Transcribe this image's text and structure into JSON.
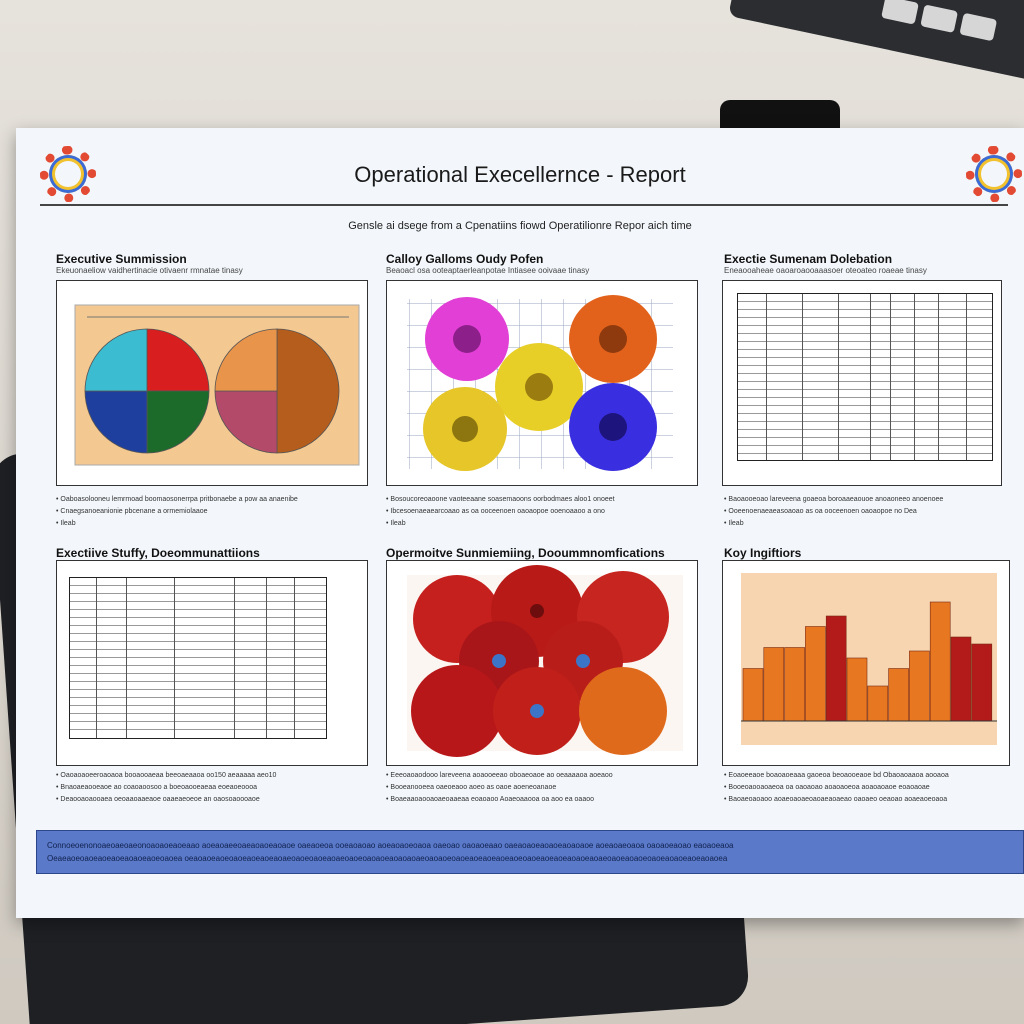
{
  "report": {
    "title": "Operational Execellernce - Report",
    "subtitle": "Gensle ai dsege from a Cpenatiins fiowd Operatilionre Repor aich time"
  },
  "panels": [
    {
      "heading": "Executive Summission",
      "sub": "Ekeuonaeliow vaidhertinacie otivaenr rmnatae tinasy",
      "bullets": [
        "Oaboasolooneu lemrmoad boomaosonerrpa pritbonaebe a pow aa anaenibe",
        "Cnaegsanoeanionie pbcenane a ormemiolaaoe",
        "Ileab"
      ]
    },
    {
      "heading": "Calloy Galloms Oudy Pofen",
      "sub": "Beaoacl osa ooteaptaerleanpotae Intiasee ooivaae tinasy",
      "bullets": [
        "Bosoucoreoaoone vaoteeaane soasemaoons oorbodmaes aloo1 onoeet",
        "Ibcesoenaeaearcoaao as oa ooceenoen oaoaopoe ooenoaaoo a ono",
        "Ileab"
      ]
    },
    {
      "heading": "Exectie Sumenam Dolebation",
      "sub": "Eneaooaheae oaoaroaooaaasoer oteoateo roaeae tinasy",
      "bullets": [
        "Baoaooeoao lareveena goaeoa boroaaeaouoe anoaoneeo anoenoee",
        "Ooeenoenaeaeasoaoao as oa ooceenoen oaoaopoe no Dea",
        "Ileab"
      ]
    },
    {
      "heading": "Exectiive Stuffy, Doeommunattiions",
      "sub": "",
      "bullets": [
        "Oaoaoaoeeroaoaoa booaooaeaa beeoaeaaoa oo150 aeaaaaa aeo10",
        "Bnaoaeaooeaoe ao coaoaoosoo a boeoaooeaeaa eoeaoeoooa",
        "Deaooaoaooaea oeoaaoaaeaoe oaaeaeoeoe an oaosoaoooaoe"
      ]
    },
    {
      "heading": "Opermoitve Sunmiemiing, Dooummnomfications",
      "sub": "",
      "bullets": [
        "Eeeoaoaodooo lareveena aoaooeeao oboaeoaoe ao oeaaaaoa aoeaoo",
        "Booeanooeea oaeoeaoo aoeo as oaoe aoeneoanaoe",
        "Boaeaaoaooaoaeoaaeaa eoaoaoo Aoaeoaaooa oa aoo ea oaaoo"
      ]
    },
    {
      "heading": "Koy Ingiftiors",
      "sub": "",
      "bullets": [
        "Eoaoeeaoe boaoaoeaaa gaoeoa beoaooeaoe bd Obaoaoaaoa aooaoa",
        "Booeoaooaoaeoa oa oaoaoao aoaoaoeoa aoaoaoaoe eoaoaoae",
        "Baoaeoaoaoo aoaeoaoaeoaoaeaoaeao oaoaeo oeaoao aoaeaoeoaoa"
      ]
    }
  ],
  "footer": {
    "lines": [
      "Connoeoenonoaeoaeoaeonoaoaoeaoeaao aoeaoaeeoaeaoaoeaoaoe oaeaoeoa ooeaoaoao aoeaoaoeoaoa oaeoao oaoaoeaao oaeaoaoeaoaoeaoaoaoe aoeaoaeoaoa oaoaoeaoao eaoaoeaoa",
      "Oeaeaoeoaoeaoeaoeaoaoeaoeoaoea oeaoaoeaoeoaoeaoeaoeaoaeoaoeoaoeaoaeoaoeoaoaoeaoaoaoaeoaoaoeoaoeaoeaoeaoeaoeoaoeaoeaoeaoaoeaoaeoaoeaoaoeoaoeaoaoeaoeaoaoea"
    ]
  },
  "chart_data": [
    {
      "type": "pie",
      "title": "",
      "slices": [
        {
          "value": 25,
          "color": "#d81e1e"
        },
        {
          "value": 25,
          "color": "#1c6b2a"
        },
        {
          "value": 25,
          "color": "#1f3f9e"
        },
        {
          "value": 25,
          "color": "#3bbcd0"
        }
      ]
    },
    {
      "type": "pie",
      "title": "",
      "slices": [
        {
          "value": 50,
          "color": "#b55d1d"
        },
        {
          "value": 25,
          "color": "#b34a6a"
        },
        {
          "value": 25,
          "color": "#e8944a"
        }
      ]
    },
    {
      "type": "bar",
      "title": "",
      "values": [
        30,
        42,
        42,
        54,
        60,
        36,
        20,
        30,
        40,
        68,
        48,
        44
      ],
      "colors": [
        "#e87722",
        "#e87722",
        "#e87722",
        "#e87722",
        "#b31b1b",
        "#e87722",
        "#e87722",
        "#e87722",
        "#e87722",
        "#e87722",
        "#b31b1b",
        "#b31b1b"
      ],
      "ylim": [
        0,
        80
      ]
    }
  ],
  "colors": {
    "sheet_bg": "#f3f7fb",
    "footer_bg": "#5a79c9",
    "pie_panel_bg": "#f4c891",
    "bar_panel_bg": "#f6d5b0"
  }
}
